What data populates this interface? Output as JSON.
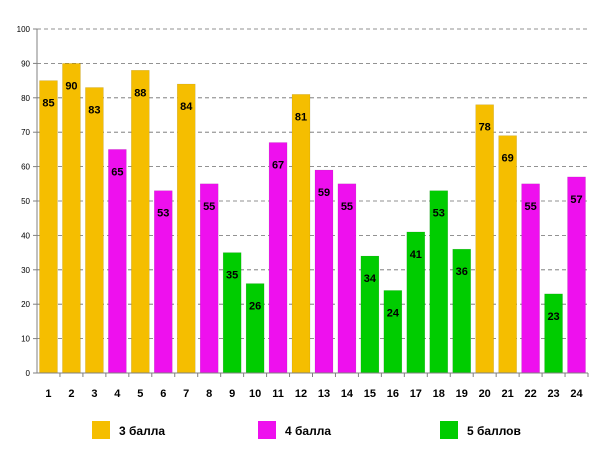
{
  "chart_data": {
    "type": "bar",
    "title": "",
    "xlabel": "",
    "ylabel": "",
    "ylim": [
      0,
      100
    ],
    "yticks": [
      0,
      10,
      20,
      30,
      40,
      50,
      60,
      70,
      80,
      90,
      100
    ],
    "grid": true,
    "categories": [
      "1",
      "2",
      "3",
      "4",
      "5",
      "6",
      "7",
      "8",
      "9",
      "10",
      "11",
      "12",
      "13",
      "14",
      "15",
      "16",
      "17",
      "18",
      "19",
      "20",
      "21",
      "22",
      "23",
      "24"
    ],
    "values": [
      85,
      90,
      83,
      65,
      88,
      53,
      84,
      55,
      35,
      26,
      67,
      81,
      59,
      55,
      34,
      24,
      41,
      53,
      36,
      78,
      69,
      55,
      23,
      57
    ],
    "groups": [
      "3",
      "3",
      "3",
      "4",
      "3",
      "4",
      "3",
      "4",
      "5",
      "5",
      "4",
      "3",
      "4",
      "4",
      "5",
      "5",
      "5",
      "5",
      "5",
      "3",
      "3",
      "4",
      "5",
      "4"
    ],
    "legend": [
      {
        "key": "3",
        "label": "3 балла",
        "color": "#f5be00"
      },
      {
        "key": "4",
        "label": "4 балла",
        "color": "#ee10ee"
      },
      {
        "key": "5",
        "label": "5 баллов",
        "color": "#00cc00"
      }
    ],
    "legend_position": "bottom"
  }
}
